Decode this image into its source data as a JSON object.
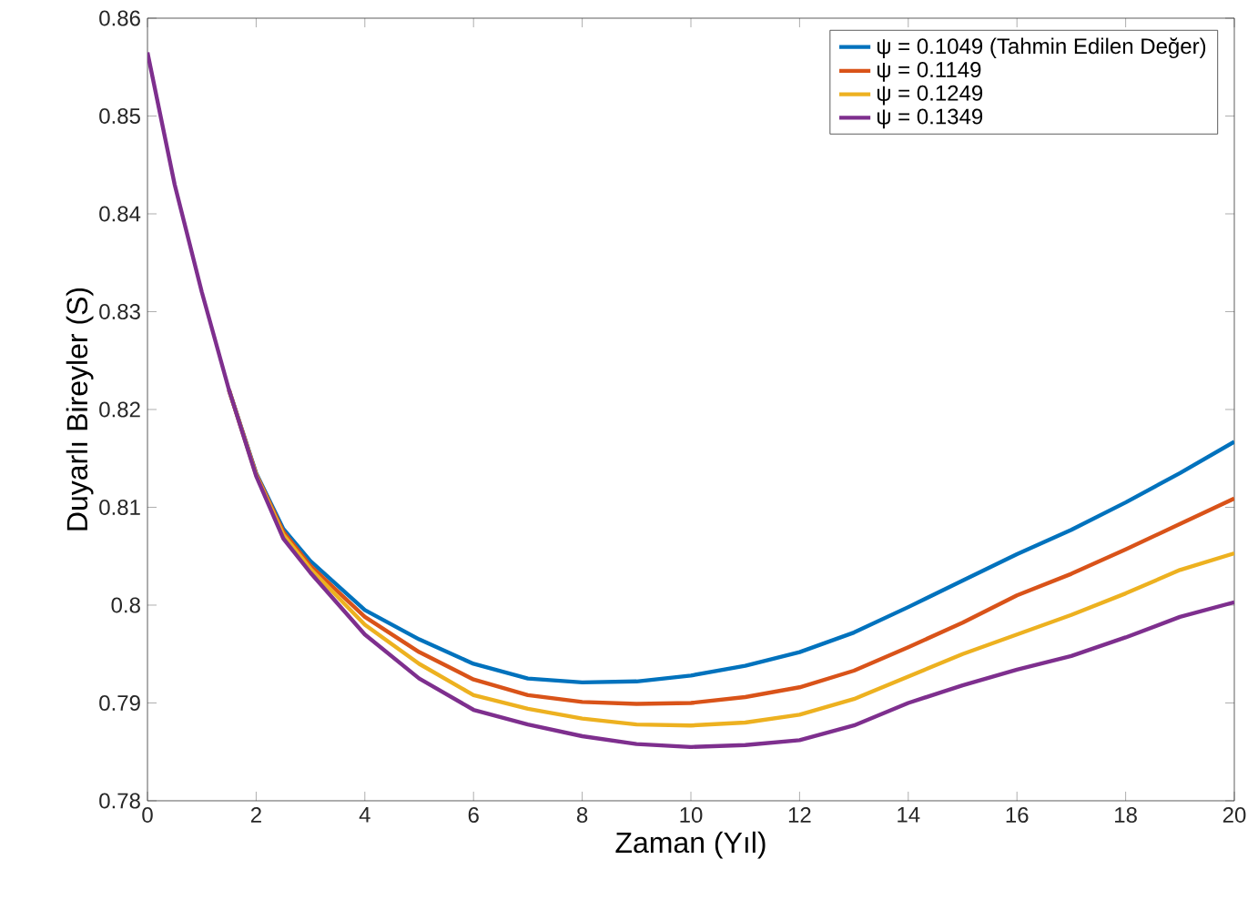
{
  "chart_data": {
    "type": "line",
    "xlabel": "Zaman (Yıl)",
    "ylabel": "Duyarlı Bireyler (S)",
    "x": [
      0,
      0.5,
      1,
      1.5,
      2,
      2.5,
      3,
      4,
      5,
      6,
      7,
      8,
      9,
      10,
      11,
      12,
      13,
      14,
      15,
      16,
      17,
      18,
      19,
      20
    ],
    "series": [
      {
        "name": "ψ = 0.1049 (Tahmin Edilen Değer)",
        "color": "#0072bd",
        "values": [
          null,
          null,
          null,
          0.822,
          0.8135,
          0.8078,
          0.8045,
          0.7995,
          0.7965,
          0.794,
          0.7925,
          0.7921,
          0.7922,
          0.7928,
          0.7938,
          0.7952,
          0.7972,
          0.7998,
          0.8025,
          0.8052,
          0.8077,
          0.8105,
          0.8135,
          0.8167
        ]
      },
      {
        "name": "ψ = 0.1149",
        "color": "#d95319",
        "values": [
          null,
          null,
          null,
          0.822,
          0.8134,
          0.8075,
          0.804,
          0.7988,
          0.7952,
          0.7924,
          0.7908,
          0.7901,
          0.7899,
          0.79,
          0.7906,
          0.7916,
          0.7933,
          0.7957,
          0.7982,
          0.801,
          0.8032,
          0.8057,
          0.8083,
          0.8109
        ]
      },
      {
        "name": "ψ = 0.1249",
        "color": "#edb120",
        "values": [
          null,
          null,
          null,
          0.822,
          0.8133,
          0.8072,
          0.8037,
          0.798,
          0.794,
          0.7908,
          0.7894,
          0.7884,
          0.7878,
          0.7877,
          0.788,
          0.7888,
          0.7904,
          0.7927,
          0.795,
          0.797,
          0.799,
          0.8012,
          0.8036,
          0.8053
        ]
      },
      {
        "name": "ψ = 0.1349",
        "color": "#7e2f8e",
        "values": [
          0.8565,
          0.843,
          0.832,
          0.822,
          0.8132,
          0.8068,
          0.8033,
          0.797,
          0.7925,
          0.7893,
          0.7878,
          0.7866,
          0.7858,
          0.7855,
          0.7857,
          0.7862,
          0.7877,
          0.79,
          0.7918,
          0.7934,
          0.7948,
          0.7967,
          0.7988,
          0.8003
        ]
      }
    ],
    "xlim": [
      0,
      20
    ],
    "ylim": [
      0.78,
      0.86
    ],
    "xticks": [
      0,
      2,
      4,
      6,
      8,
      10,
      12,
      14,
      16,
      18,
      20
    ],
    "yticks": [
      0.78,
      0.79,
      0.8,
      0.81,
      0.82,
      0.83,
      0.84,
      0.85,
      0.86
    ],
    "grid": false,
    "legend": "top right",
    "marker": "none",
    "line_style": "solid"
  }
}
